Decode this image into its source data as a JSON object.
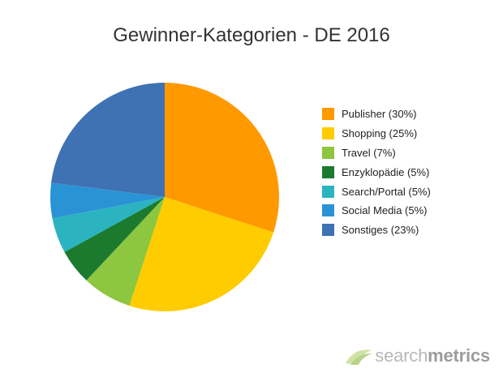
{
  "chart_data": {
    "type": "pie",
    "title": "Gewinner-Kategorien - DE 2016",
    "slices": [
      {
        "label": "Publisher (30%)",
        "value": 30,
        "color": "#FF9900"
      },
      {
        "label": "Shopping (25%)",
        "value": 25,
        "color": "#FFCC00"
      },
      {
        "label": "Travel (7%)",
        "value": 7,
        "color": "#8DC63F"
      },
      {
        "label": "Enzyklopädie (5%)",
        "value": 5,
        "color": "#1B7A2E"
      },
      {
        "label": "Search/Portal (5%)",
        "value": 5,
        "color": "#2BB3C0"
      },
      {
        "label": "Social Media (5%)",
        "value": 5,
        "color": "#2A93D5"
      },
      {
        "label": "Sonstiges (23%)",
        "value": 23,
        "color": "#3E72B3"
      }
    ],
    "legend_position": "right"
  },
  "brand": {
    "name_light": "search",
    "name_bold": "metrics",
    "logo_icon": "searchmetrics-logo-icon"
  }
}
